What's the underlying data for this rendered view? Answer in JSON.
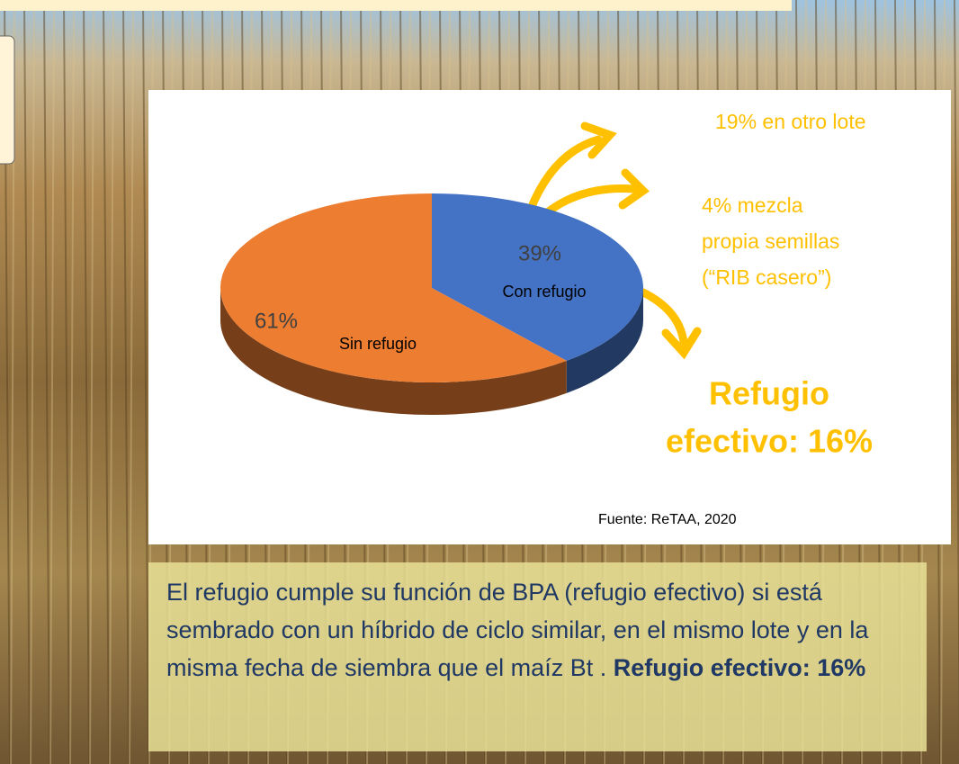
{
  "chart_data": {
    "type": "pie",
    "categories": [
      "Con refugio",
      "Sin refugio"
    ],
    "values": [
      39,
      61
    ],
    "value_labels": [
      "39%",
      "61%"
    ],
    "colors": [
      "#4472c4",
      "#ed7d31"
    ],
    "annotations": [
      [
        "19% en otro lote"
      ],
      [
        "4% mezcla",
        "propia semillas",
        "(“RIB casero”)"
      ],
      [
        "Refugio",
        "efectivo: 16%"
      ]
    ],
    "source": "Fuente: ReTAA, 2020"
  },
  "caption": {
    "text": "El refugio cumple su función de BPA (refugio efectivo) si está sembrado con un híbrido de ciclo similar, en el mismo lote y en la misma fecha de siembra que el maíz Bt .",
    "bold": "Refugio efectivo: 16%"
  }
}
